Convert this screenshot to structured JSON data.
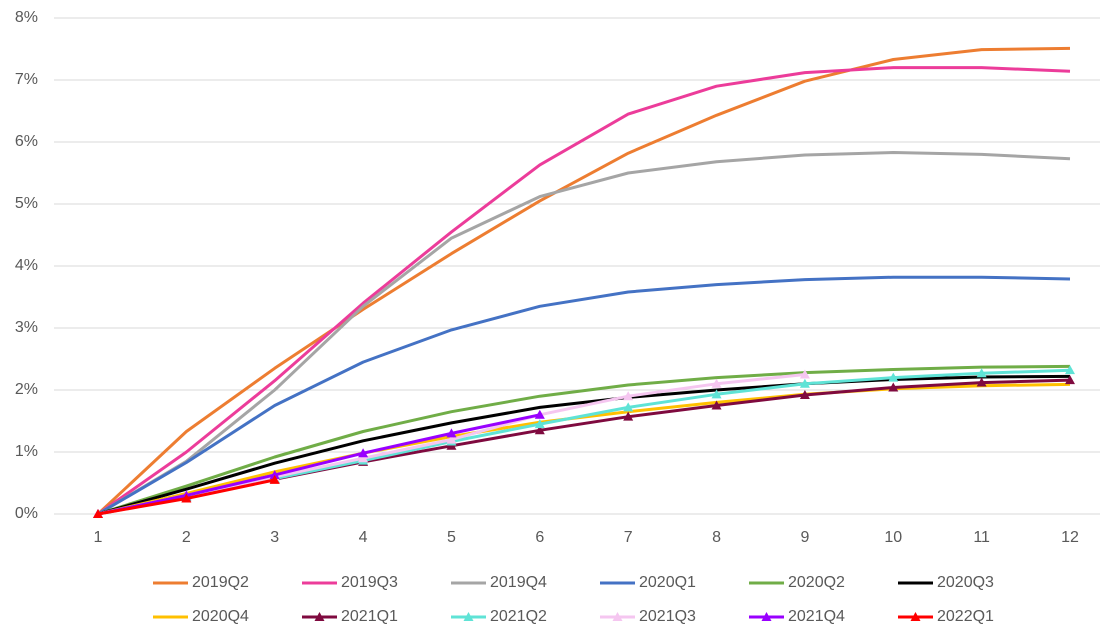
{
  "chart_data": {
    "type": "line",
    "categories": [
      "1",
      "2",
      "3",
      "4",
      "5",
      "6",
      "7",
      "8",
      "9",
      "10",
      "11",
      "12"
    ],
    "ylim": [
      0,
      8
    ],
    "yticks": [
      {
        "value": 0,
        "label": "0%"
      },
      {
        "value": 1,
        "label": "1%"
      },
      {
        "value": 2,
        "label": "2%"
      },
      {
        "value": 3,
        "label": "3%"
      },
      {
        "value": 4,
        "label": "4%"
      },
      {
        "value": 5,
        "label": "5%"
      },
      {
        "value": 6,
        "label": "6%"
      },
      {
        "value": 7,
        "label": "7%"
      },
      {
        "value": 8,
        "label": "8%"
      }
    ],
    "grid": true,
    "legend": "bottom",
    "series": [
      {
        "name": "2019Q2",
        "color": "#ED7D31",
        "values": [
          0,
          1.33,
          2.35,
          3.3,
          4.2,
          5.05,
          5.82,
          6.43,
          6.98,
          7.33,
          7.49,
          7.51
        ]
      },
      {
        "name": "2019Q3",
        "color": "#EC3C9A",
        "values": [
          0,
          1.0,
          2.15,
          3.4,
          4.55,
          5.63,
          6.45,
          6.9,
          7.12,
          7.2,
          7.2,
          7.14
        ]
      },
      {
        "name": "2019Q4",
        "color": "#A5A5A5",
        "values": [
          0,
          0.85,
          2.0,
          3.35,
          4.45,
          5.12,
          5.5,
          5.68,
          5.79,
          5.83,
          5.8,
          5.73
        ]
      },
      {
        "name": "2020Q1",
        "color": "#4472C4",
        "values": [
          0,
          0.83,
          1.75,
          2.45,
          2.97,
          3.35,
          3.58,
          3.7,
          3.78,
          3.82,
          3.82,
          3.79
        ]
      },
      {
        "name": "2020Q2",
        "color": "#70AD47",
        "values": [
          0,
          0.45,
          0.92,
          1.33,
          1.65,
          1.9,
          2.08,
          2.2,
          2.28,
          2.33,
          2.37,
          2.38
        ]
      },
      {
        "name": "2020Q3",
        "color": "#000000",
        "values": [
          0,
          0.4,
          0.82,
          1.18,
          1.47,
          1.72,
          1.88,
          2.0,
          2.1,
          2.17,
          2.21,
          2.22
        ]
      },
      {
        "name": "2020Q4",
        "color": "#FFC000",
        "values": [
          0,
          0.33,
          0.68,
          0.98,
          1.25,
          1.48,
          1.65,
          1.8,
          1.93,
          2.02,
          2.07,
          2.09
        ]
      },
      {
        "name": "2021Q1",
        "color": "#7F0A3F",
        "marker": "triangle",
        "values": [
          0,
          0.27,
          0.56,
          0.84,
          1.1,
          1.35,
          1.57,
          1.75,
          1.92,
          2.04,
          2.12,
          2.16
        ]
      },
      {
        "name": "2021Q2",
        "color": "#5FE3D6",
        "marker": "triangle",
        "values": [
          0,
          0.28,
          0.57,
          0.86,
          1.17,
          1.45,
          1.72,
          1.93,
          2.1,
          2.2,
          2.27,
          2.32
        ]
      },
      {
        "name": "2021Q3",
        "color": "#F5C6F0",
        "marker": "triangle",
        "values": [
          0,
          0.3,
          0.6,
          0.9,
          1.2,
          1.6,
          1.9,
          2.1,
          2.25,
          null,
          null,
          null
        ]
      },
      {
        "name": "2021Q4",
        "color": "#9900FF",
        "marker": "triangle",
        "values": [
          0,
          0.3,
          0.63,
          0.98,
          1.3,
          1.6,
          null,
          null,
          null,
          null,
          null,
          null
        ]
      },
      {
        "name": "2022Q1",
        "color": "#FF0000",
        "marker": "triangle",
        "values": [
          0,
          0.25,
          0.55,
          null,
          null,
          null,
          null,
          null,
          null,
          null,
          null,
          null
        ]
      }
    ]
  }
}
